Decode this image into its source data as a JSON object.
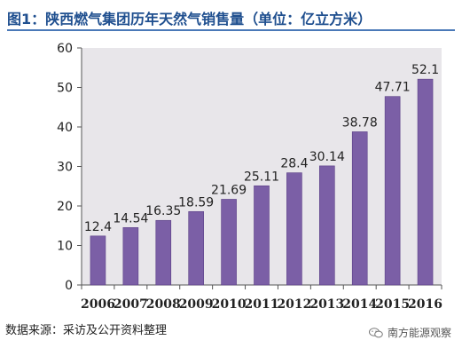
{
  "title": "图1：陕西燃气集团历年天然气销售量（单位：亿立方米）",
  "source": "数据来源：采访及公开资料整理",
  "watermark": "南方能源观察",
  "colors": {
    "bar": "#7b5fa6",
    "bar_edge": "#5b3f86",
    "plot_bg": "#e8e6ea",
    "title": "#1f4f8f"
  },
  "chart_data": {
    "type": "bar",
    "categories": [
      "2006",
      "2007",
      "2008",
      "2009",
      "2010",
      "2011",
      "2012",
      "2013",
      "2014",
      "2015",
      "2016"
    ],
    "values": [
      12.4,
      14.54,
      16.35,
      18.59,
      21.69,
      25.11,
      28.4,
      30.14,
      38.78,
      47.71,
      52.1
    ],
    "value_labels": [
      "12.4",
      "14.54",
      "16.35",
      "18.59",
      "21.69",
      "25.11",
      "28.4",
      "30.14",
      "38.78",
      "47.71",
      "52.1"
    ],
    "ylim": [
      0,
      60
    ],
    "yticks": [
      "0",
      "10",
      "20",
      "30",
      "40",
      "50",
      "60"
    ],
    "grid": false,
    "legend": false
  }
}
